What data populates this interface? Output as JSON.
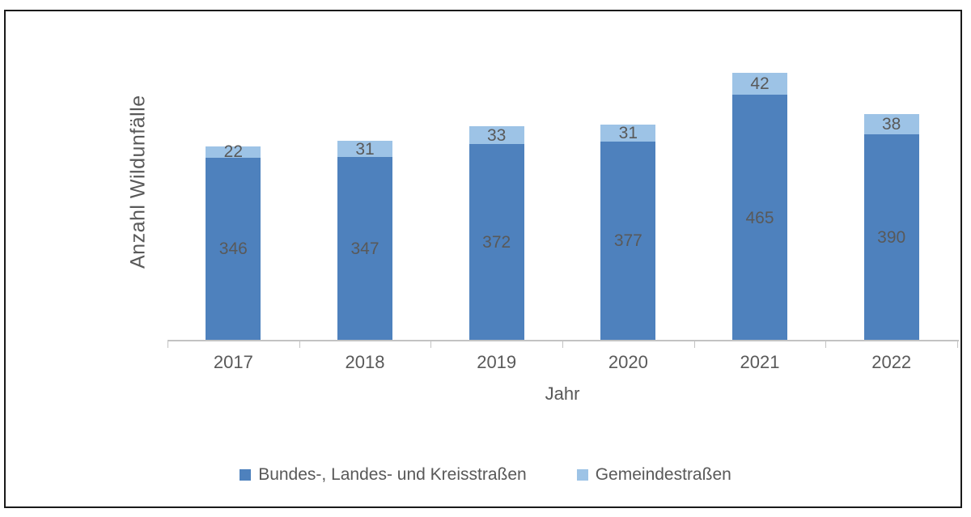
{
  "chart_data": {
    "type": "bar",
    "stacked": true,
    "categories": [
      "2017",
      "2018",
      "2019",
      "2020",
      "2021",
      "2022"
    ],
    "series": [
      {
        "name": "Bundes-, Landes- und Kreisstraßen",
        "color": "#4E81BD",
        "values": [
          346,
          347,
          372,
          377,
          465,
          390
        ]
      },
      {
        "name": "Gemeindestraßen",
        "color": "#9DC3E6",
        "values": [
          22,
          31,
          33,
          31,
          42,
          38
        ]
      }
    ],
    "title": "",
    "xlabel": "Jahr",
    "ylabel": "Anzahl Wildunfälle",
    "ylim": [
      0,
      600
    ],
    "grid": false,
    "legend_position": "bottom",
    "data_labels": true
  },
  "colors": {
    "label_text": "#595959",
    "axis_line": "#C3C3C3",
    "frame_border": "#1A1A1A",
    "background": "#FFFFFF"
  }
}
